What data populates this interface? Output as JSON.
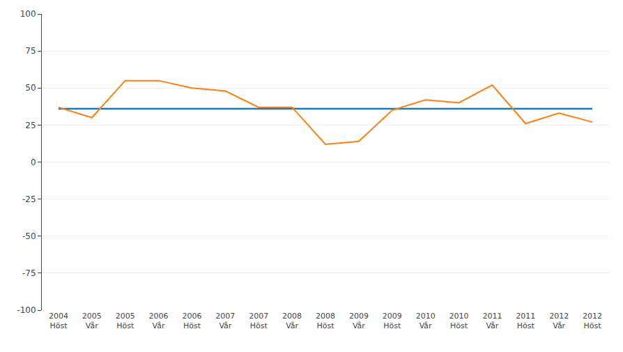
{
  "chart_data": {
    "type": "line",
    "categories": [
      "2004\nHöst",
      "2005\nVår",
      "2005\nHöst",
      "2006\nVår",
      "2006\nHöst",
      "2007\nVår",
      "2007\nHöst",
      "2008\nVår",
      "2008\nHöst",
      "2009\nVår",
      "2009\nHöst",
      "2010\nVår",
      "2010\nHöst",
      "2011\nVår",
      "2011\nHöst",
      "2012\nVår",
      "2012\nHöst"
    ],
    "series": [
      {
        "values": [
          36,
          36,
          36,
          36,
          36,
          36,
          36,
          36,
          36,
          36,
          36,
          36,
          36,
          36,
          36,
          36,
          36
        ]
      },
      {
        "values": [
          37,
          30,
          55,
          55,
          50,
          48,
          37,
          37,
          12,
          14,
          35,
          42,
          40,
          52,
          26,
          33,
          27
        ]
      }
    ],
    "ylim": [
      -100,
      100
    ],
    "yticks": [
      -100,
      -75,
      -50,
      -25,
      0,
      25,
      50,
      75,
      100
    ],
    "grid": true
  }
}
